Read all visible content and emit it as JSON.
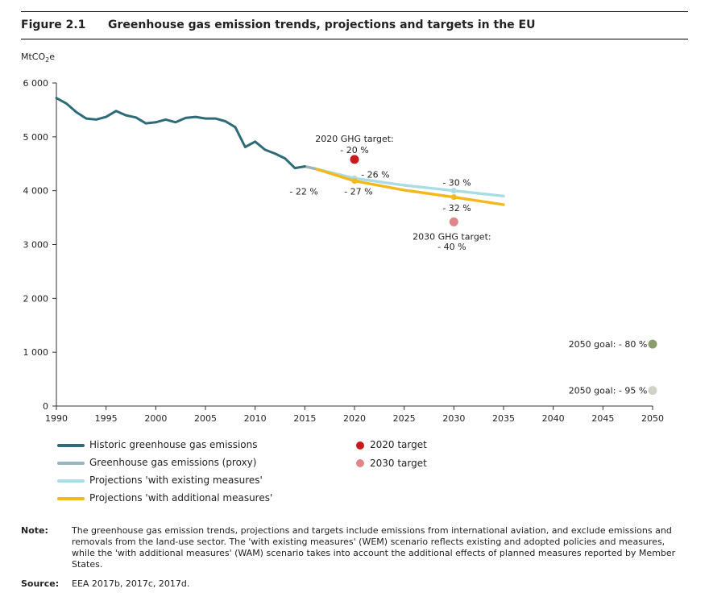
{
  "figure": {
    "number": "Figure 2.1",
    "title": "Greenhouse gas emission trends, projections and targets in the EU"
  },
  "chart_data": {
    "type": "line",
    "ylabel_main": "MtCO",
    "ylabel_sub": "2",
    "ylabel_suffix": "e",
    "xlim": [
      1990,
      2050
    ],
    "ylim": [
      0,
      6000
    ],
    "x_ticks": [
      "1990",
      "1995",
      "2000",
      "2005",
      "2010",
      "2015",
      "2020",
      "2025",
      "2030",
      "2035",
      "2040",
      "2045",
      "2050"
    ],
    "y_ticks": [
      "0",
      "1 000",
      "2 000",
      "3 000",
      "4 000",
      "5 000",
      "6 000"
    ],
    "grid": false,
    "series": [
      {
        "name": "Historic greenhouse gas emissions",
        "color": "#2e6b78",
        "points": [
          [
            1990,
            5720
          ],
          [
            1991,
            5620
          ],
          [
            1992,
            5460
          ],
          [
            1993,
            5340
          ],
          [
            1994,
            5320
          ],
          [
            1995,
            5370
          ],
          [
            1996,
            5480
          ],
          [
            1997,
            5400
          ],
          [
            1998,
            5360
          ],
          [
            1999,
            5250
          ],
          [
            2000,
            5270
          ],
          [
            2001,
            5320
          ],
          [
            2002,
            5270
          ],
          [
            2003,
            5350
          ],
          [
            2004,
            5370
          ],
          [
            2005,
            5340
          ],
          [
            2006,
            5340
          ],
          [
            2007,
            5290
          ],
          [
            2008,
            5180
          ],
          [
            2009,
            4810
          ],
          [
            2010,
            4910
          ],
          [
            2011,
            4760
          ],
          [
            2012,
            4690
          ],
          [
            2013,
            4600
          ],
          [
            2014,
            4420
          ],
          [
            2015,
            4450
          ]
        ]
      },
      {
        "name": "Greenhouse gas emissions (proxy)",
        "color": "#98b6c0",
        "points": [
          [
            2015,
            4450
          ],
          [
            2016,
            4410
          ]
        ]
      },
      {
        "name": "Projections 'with existing measures'",
        "color": "#a9dde5",
        "points": [
          [
            2015,
            4450
          ],
          [
            2016,
            4410
          ],
          [
            2020,
            4230
          ],
          [
            2025,
            4100
          ],
          [
            2030,
            4000
          ],
          [
            2035,
            3900
          ]
        ]
      },
      {
        "name": "Projections 'with additional measures'",
        "color": "#f5b71b",
        "points": [
          [
            2015,
            4450
          ],
          [
            2016,
            4410
          ],
          [
            2020,
            4180
          ],
          [
            2025,
            4010
          ],
          [
            2030,
            3880
          ],
          [
            2035,
            3740
          ]
        ]
      }
    ],
    "markers": [
      {
        "name": "2020 target",
        "x": 2020,
        "y": 4580,
        "color": "#c8191f"
      },
      {
        "name": "2030 target",
        "x": 2030,
        "y": 3420,
        "color": "#e0868a"
      },
      {
        "name": "2050 goal - 80 %",
        "x": 2050,
        "y": 1150,
        "color": "#8a9d6c"
      },
      {
        "name": "2050 goal - 95 %",
        "x": 2050,
        "y": 290,
        "color": "#cfd2c4"
      }
    ],
    "annotations": [
      {
        "text": "2020 GHG target:",
        "x": 2020,
        "y": 4970
      },
      {
        "text": "- 20 %",
        "x": 2020,
        "y": 4760
      },
      {
        "text": "- 26 %",
        "x": 2022.1,
        "y": 4300
      },
      {
        "text": "- 22 %",
        "x": 2014.9,
        "y": 3990
      },
      {
        "text": "- 27 %",
        "x": 2020.4,
        "y": 3990
      },
      {
        "text": "- 30 %",
        "x": 2030.3,
        "y": 4150
      },
      {
        "text": "- 32 %",
        "x": 2030.3,
        "y": 3680
      },
      {
        "text": "2030 GHG target:",
        "x": 2029.8,
        "y": 3150
      },
      {
        "text": "- 40 %",
        "x": 2029.8,
        "y": 2960
      },
      {
        "text": "2050 goal: - 80 %",
        "x": 2045.5,
        "y": 1150
      },
      {
        "text": "2050 goal: - 95 %",
        "x": 2045.5,
        "y": 290
      }
    ]
  },
  "legend": {
    "historic": "Historic greenhouse gas emissions",
    "proxy": "Greenhouse gas emissions (proxy)",
    "wem": "Projections 'with existing measures'",
    "wam": "Projections 'with additional measures'",
    "target2020": "2020 target",
    "target2030": "2030 target"
  },
  "note": {
    "label": "Note:",
    "text": "The greenhouse gas emission trends, projections and targets include emissions from international aviation, and exclude emissions and removals from the land-use sector. The 'with existing measures' (WEM) scenario reflects existing and adopted policies and measures, while the 'with additional measures' (WAM) scenario takes into account the additional effects of planned measures reported by Member States."
  },
  "source": {
    "label": "Source:",
    "text": "EEA 2017b, 2017c, 2017d."
  }
}
